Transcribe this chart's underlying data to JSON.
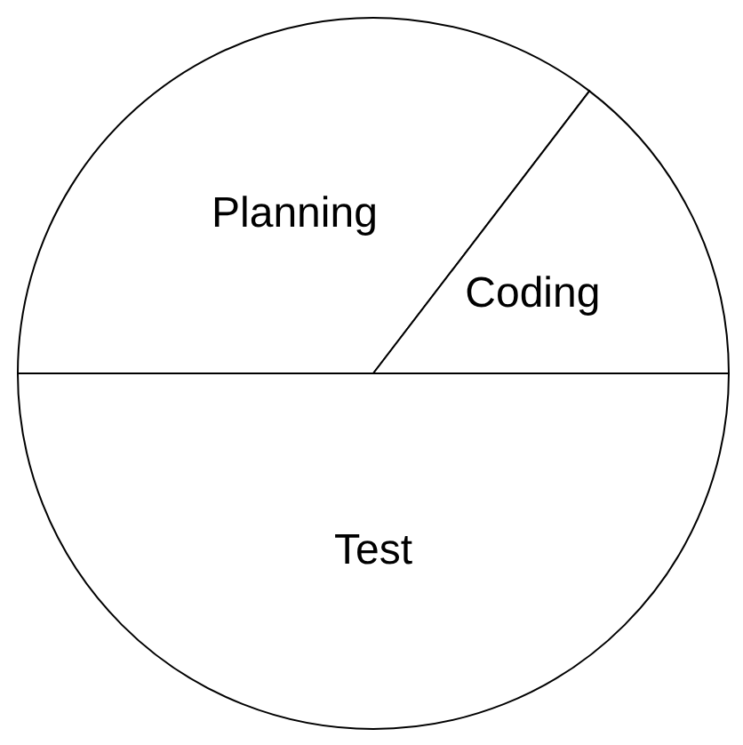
{
  "chart_data": {
    "type": "pie",
    "categories": [
      "Planning",
      "Coding",
      "Test"
    ],
    "values": [
      35.4,
      14.6,
      50
    ],
    "colors": [
      "#ffffff",
      "#ffffff",
      "#ffffff"
    ]
  }
}
